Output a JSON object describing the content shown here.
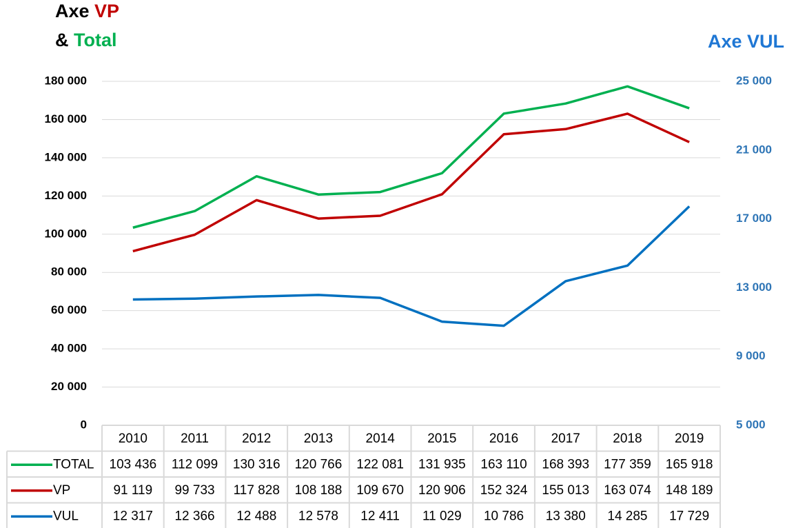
{
  "chart_data": {
    "type": "line",
    "ylabel_lines": [
      [
        {
          "text": "Axe ",
          "color": "#000000"
        },
        {
          "text": "VP",
          "color": "#c00000"
        }
      ],
      [
        {
          "text": "& ",
          "color": "#000000"
        },
        {
          "text": "Total",
          "color": "#00b050"
        }
      ]
    ],
    "y2label": "Axe VUL",
    "y2label_color": "#1f77d4",
    "categories": [
      "2010",
      "2011",
      "2012",
      "2013",
      "2014",
      "2015",
      "2016",
      "2017",
      "2018",
      "2019"
    ],
    "series": [
      {
        "name": "TOTAL",
        "color": "#00b050",
        "axis": "y",
        "values": [
          103436,
          112099,
          130316,
          120766,
          122081,
          131935,
          163110,
          168393,
          177359,
          165918
        ],
        "value_labels": [
          "103 436",
          "112 099",
          "130 316",
          "120 766",
          "122 081",
          "131 935",
          "163 110",
          "168 393",
          "177 359",
          "165 918"
        ]
      },
      {
        "name": "VP",
        "color": "#c00000",
        "axis": "y",
        "values": [
          91119,
          99733,
          117828,
          108188,
          109670,
          120906,
          152324,
          155013,
          163074,
          148189
        ],
        "value_labels": [
          "91 119",
          "99 733",
          "117 828",
          "108 188",
          "109 670",
          "120 906",
          "152 324",
          "155 013",
          "163 074",
          "148 189"
        ]
      },
      {
        "name": "VUL",
        "color": "#0070c0",
        "axis": "y2",
        "values": [
          12317,
          12366,
          12488,
          12578,
          12411,
          11029,
          10786,
          13380,
          14285,
          17729
        ],
        "value_labels": [
          "12 317",
          "12 366",
          "12 488",
          "12 578",
          "12 411",
          "11 029",
          "10 786",
          "13 380",
          "14 285",
          "17 729"
        ]
      }
    ],
    "ylim": [
      0,
      180000
    ],
    "yticks": [
      0,
      {
        "value": 20000,
        "label": "20 000"
      },
      {
        "value": 40000,
        "label": "40 000"
      },
      {
        "value": 60000,
        "label": "60 000"
      },
      {
        "value": 80000,
        "label": "80 000"
      },
      {
        "value": 100000,
        "label": "100 000"
      },
      {
        "value": 120000,
        "label": "120 000"
      },
      {
        "value": 140000,
        "label": "140 000"
      },
      {
        "value": 160000,
        "label": "160 000"
      },
      {
        "value": 180000,
        "label": "180 000"
      }
    ],
    "y2lim": [
      5000,
      25000
    ],
    "y2ticks": [
      {
        "value": 5000,
        "label": "5 000"
      },
      {
        "value": 9000,
        "label": "9 000"
      },
      {
        "value": 13000,
        "label": "13 000"
      },
      {
        "value": 17000,
        "label": "17 000"
      },
      {
        "value": 21000,
        "label": "21 000"
      },
      {
        "value": 25000,
        "label": "25 000"
      }
    ],
    "y2tick_color": "#2e75b6",
    "grid": true,
    "data_table": true
  }
}
